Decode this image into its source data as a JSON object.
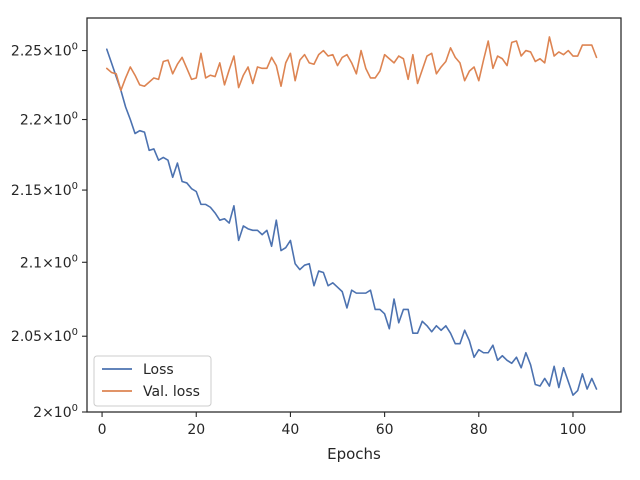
{
  "chart_data": {
    "type": "line",
    "xlabel": "Epochs",
    "ylabel": "",
    "xlim": [
      -3.2,
      110.2
    ],
    "ylim": [
      2.0,
      2.274
    ],
    "xticks": [
      0,
      20,
      40,
      60,
      80,
      100
    ],
    "xtick_labels": [
      "0",
      "20",
      "40",
      "60",
      "80",
      "100"
    ],
    "yticks": [
      2.0,
      2.05,
      2.1,
      2.15,
      2.2,
      2.25
    ],
    "ytick_labels": [
      {
        "base": "2",
        "exp": "0"
      },
      {
        "base": "2.05",
        "exp": "0"
      },
      {
        "base": "2.1",
        "exp": "0"
      },
      {
        "base": "2.15",
        "exp": "0"
      },
      {
        "base": "2.2",
        "exp": "0"
      },
      {
        "base": "2.25",
        "exp": "0"
      }
    ],
    "tick_separator": "×10",
    "y_scale": "log",
    "grid": false,
    "legend_position": "lower-left",
    "series": [
      {
        "name": "Loss",
        "color": "#4c72b0",
        "x": [
          1,
          2,
          3,
          4,
          5,
          6,
          7,
          8,
          9,
          10,
          11,
          12,
          13,
          14,
          15,
          16,
          17,
          18,
          19,
          20,
          21,
          22,
          23,
          24,
          25,
          26,
          27,
          28,
          29,
          30,
          31,
          32,
          33,
          34,
          35,
          36,
          37,
          38,
          39,
          40,
          41,
          42,
          43,
          44,
          45,
          46,
          47,
          48,
          49,
          50,
          51,
          52,
          53,
          54,
          55,
          56,
          57,
          58,
          59,
          60,
          61,
          62,
          63,
          64,
          65,
          66,
          67,
          68,
          69,
          70,
          71,
          72,
          73,
          74,
          75,
          76,
          77,
          78,
          79,
          80,
          81,
          82,
          83,
          84,
          85,
          86,
          87,
          88,
          89,
          90,
          91,
          92,
          93,
          94,
          95,
          96,
          97,
          98,
          99,
          100,
          101,
          102,
          103,
          104,
          105
        ],
        "values": [
          2.251,
          2.241,
          2.231,
          2.221,
          2.209,
          2.2,
          2.19,
          2.192,
          2.191,
          2.178,
          2.179,
          2.171,
          2.173,
          2.171,
          2.159,
          2.169,
          2.156,
          2.155,
          2.151,
          2.149,
          2.14,
          2.14,
          2.138,
          2.134,
          2.129,
          2.13,
          2.127,
          2.139,
          2.115,
          2.125,
          2.123,
          2.122,
          2.122,
          2.119,
          2.122,
          2.111,
          2.129,
          2.108,
          2.11,
          2.115,
          2.099,
          2.095,
          2.098,
          2.099,
          2.084,
          2.094,
          2.093,
          2.084,
          2.086,
          2.083,
          2.08,
          2.069,
          2.081,
          2.079,
          2.079,
          2.079,
          2.081,
          2.068,
          2.068,
          2.065,
          2.055,
          2.075,
          2.059,
          2.068,
          2.068,
          2.052,
          2.052,
          2.06,
          2.057,
          2.053,
          2.057,
          2.054,
          2.057,
          2.052,
          2.045,
          2.045,
          2.054,
          2.047,
          2.036,
          2.041,
          2.039,
          2.039,
          2.044,
          2.034,
          2.037,
          2.034,
          2.032,
          2.036,
          2.029,
          2.039,
          2.031,
          2.018,
          2.017,
          2.022,
          2.017,
          2.03,
          2.016,
          2.029,
          2.02,
          2.011,
          2.014,
          2.025,
          2.015,
          2.022,
          2.015
        ]
      },
      {
        "name": "Val. loss",
        "color": "#dd8452",
        "x": [
          1,
          2,
          3,
          4,
          5,
          6,
          7,
          8,
          9,
          10,
          11,
          12,
          13,
          14,
          15,
          16,
          17,
          18,
          19,
          20,
          21,
          22,
          23,
          24,
          25,
          26,
          27,
          28,
          29,
          30,
          31,
          32,
          33,
          34,
          35,
          36,
          37,
          38,
          39,
          40,
          41,
          42,
          43,
          44,
          45,
          46,
          47,
          48,
          49,
          50,
          51,
          52,
          53,
          54,
          55,
          56,
          57,
          58,
          59,
          60,
          61,
          62,
          63,
          64,
          65,
          66,
          67,
          68,
          69,
          70,
          71,
          72,
          73,
          74,
          75,
          76,
          77,
          78,
          79,
          80,
          81,
          82,
          83,
          84,
          85,
          86,
          87,
          88,
          89,
          90,
          91,
          92,
          93,
          94,
          95,
          96,
          97,
          98,
          99,
          100,
          101,
          102,
          103,
          104,
          105
        ],
        "values": [
          2.237,
          2.234,
          2.233,
          2.221,
          2.23,
          2.238,
          2.232,
          2.225,
          2.224,
          2.227,
          2.23,
          2.229,
          2.242,
          2.243,
          2.233,
          2.24,
          2.245,
          2.237,
          2.229,
          2.23,
          2.248,
          2.23,
          2.232,
          2.231,
          2.241,
          2.225,
          2.236,
          2.246,
          2.223,
          2.232,
          2.238,
          2.226,
          2.238,
          2.237,
          2.237,
          2.245,
          2.239,
          2.224,
          2.241,
          2.248,
          2.228,
          2.243,
          2.247,
          2.241,
          2.24,
          2.247,
          2.25,
          2.246,
          2.247,
          2.239,
          2.245,
          2.247,
          2.241,
          2.233,
          2.25,
          2.237,
          2.23,
          2.23,
          2.235,
          2.247,
          2.244,
          2.241,
          2.246,
          2.244,
          2.229,
          2.247,
          2.226,
          2.236,
          2.246,
          2.248,
          2.233,
          2.238,
          2.242,
          2.252,
          2.245,
          2.241,
          2.228,
          2.235,
          2.238,
          2.228,
          2.243,
          2.257,
          2.237,
          2.246,
          2.244,
          2.239,
          2.256,
          2.257,
          2.246,
          2.25,
          2.249,
          2.242,
          2.244,
          2.241,
          2.26,
          2.246,
          2.249,
          2.247,
          2.25,
          2.246,
          2.246,
          2.254,
          2.254,
          2.254,
          2.245
        ]
      }
    ]
  }
}
